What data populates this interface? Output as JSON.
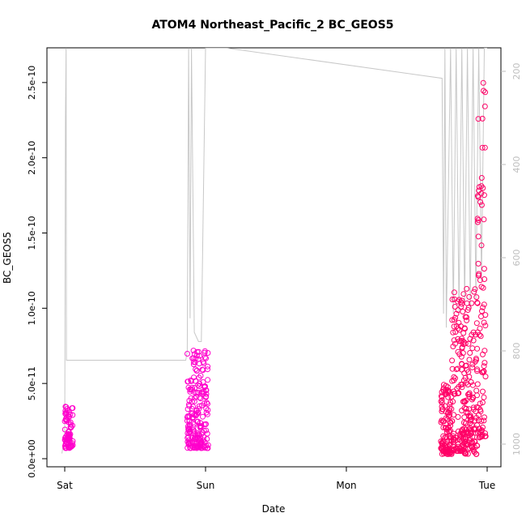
{
  "chart_data": {
    "type": "scatter",
    "title": "ATOM4 Northeast_Pacific_2 BC_GEOS5",
    "xlabel": "Date",
    "ylabel": "BC_GEOS5",
    "x_ticks": [
      "Sat",
      "Sun",
      "Mon",
      "Tue"
    ],
    "x_range_days": [
      0,
      3.13
    ],
    "ylim": [
      0,
      2.65e-10
    ],
    "y_ticks": [
      {
        "value": 0,
        "label": "0.0e+00"
      },
      {
        "value": 5e-11,
        "label": "5.0e-11"
      },
      {
        "value": 1e-10,
        "label": "1.0e-10"
      },
      {
        "value": 1.5e-10,
        "label": "1.5e-10"
      },
      {
        "value": 2e-10,
        "label": "2.0e-10"
      },
      {
        "value": 2.5e-10,
        "label": "2.5e-10"
      }
    ],
    "right_axis": {
      "quantity": "pressure",
      "range": [
        1020,
        150
      ],
      "reversed": true,
      "ticks": [
        200,
        400,
        600,
        800,
        1000
      ],
      "color": "#bebebe"
    },
    "grid": false,
    "legend": "none",
    "point_clusters": [
      {
        "x_start": 0.0,
        "x_end": 0.06,
        "y_min": 7e-12,
        "y_max": 3.5e-11,
        "color": "#ff00cc"
      },
      {
        "x_start": 0.87,
        "x_end": 1.02,
        "y_min": 7e-12,
        "y_max": 7.2e-11,
        "color": "#ff00cc"
      },
      {
        "x_start": 2.67,
        "x_end": 2.75,
        "y_min": 3e-12,
        "y_max": 5e-11,
        "color": "#ff0066"
      },
      {
        "x_start": 2.75,
        "x_end": 2.84,
        "y_min": 5e-12,
        "y_max": 1.17e-10,
        "color": "#ff0066"
      },
      {
        "x_start": 2.84,
        "x_end": 2.93,
        "y_min": 3e-12,
        "y_max": 1.15e-10,
        "color": "#ff0066"
      },
      {
        "x_start": 2.93,
        "x_end": 2.99,
        "y_min": 1.4e-11,
        "y_max": 2.55e-10,
        "color": "#ff0066"
      }
    ],
    "pressure_trace": [
      [
        -0.02,
        1020
      ],
      [
        0.0,
        980
      ],
      [
        0.005,
        300
      ],
      [
        0.01,
        150
      ],
      [
        0.012,
        820
      ],
      [
        0.86,
        820
      ],
      [
        0.87,
        800
      ],
      [
        0.88,
        150
      ],
      [
        0.89,
        730
      ],
      [
        0.9,
        150
      ],
      [
        0.92,
        760
      ],
      [
        0.95,
        780
      ],
      [
        0.97,
        780
      ],
      [
        1.0,
        150
      ],
      [
        1.15,
        150
      ],
      [
        2.68,
        215
      ],
      [
        2.69,
        720
      ],
      [
        2.7,
        150
      ],
      [
        2.71,
        750
      ],
      [
        2.74,
        150
      ],
      [
        2.76,
        720
      ],
      [
        2.78,
        150
      ],
      [
        2.8,
        720
      ],
      [
        2.82,
        150
      ],
      [
        2.84,
        700
      ],
      [
        2.86,
        150
      ],
      [
        2.88,
        710
      ],
      [
        2.9,
        150
      ],
      [
        2.92,
        690
      ],
      [
        2.94,
        150
      ],
      [
        2.96,
        650
      ],
      [
        2.98,
        150
      ],
      [
        3.0,
        150
      ]
    ]
  }
}
